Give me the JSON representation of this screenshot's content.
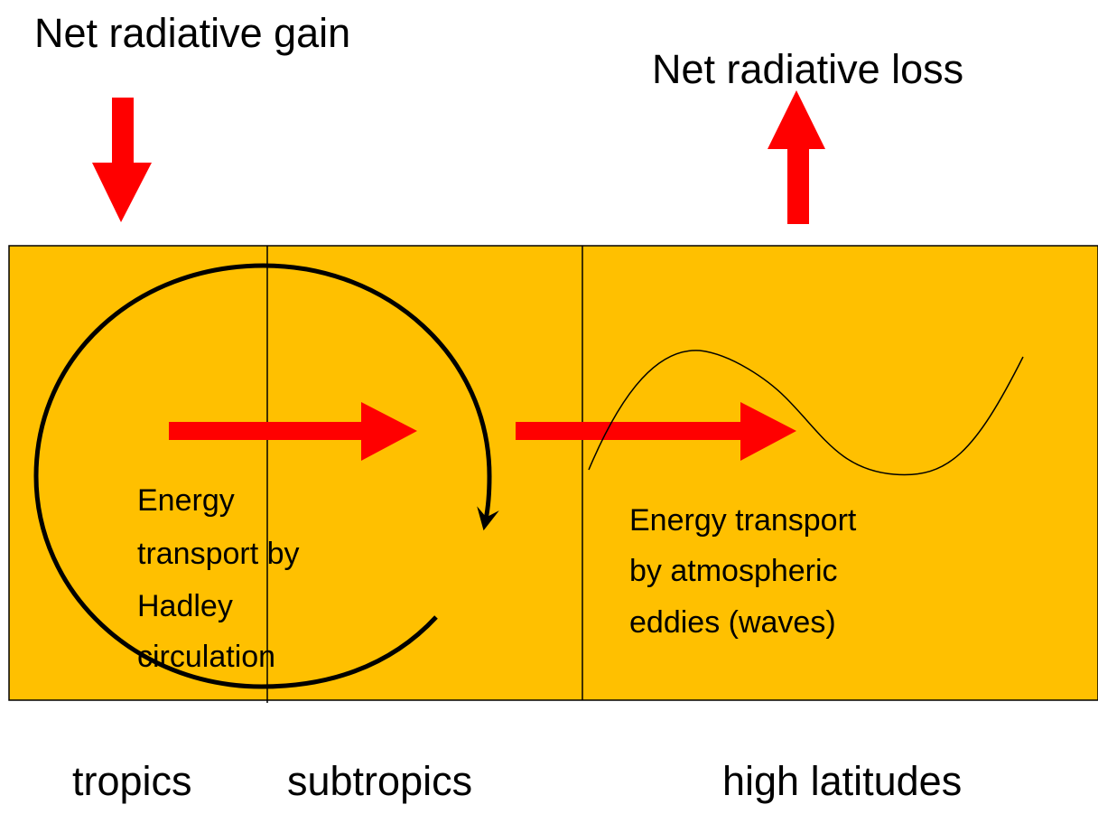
{
  "labels": {
    "gain": "Net radiative gain",
    "loss": "Net radiative loss"
  },
  "hadley_text": [
    "Energy",
    "transport by",
    "Hadley",
    "circulation"
  ],
  "eddy_text": [
    "Energy transport",
    "by atmospheric",
    "eddies (waves)"
  ],
  "zones": [
    "tropics",
    "subtropics",
    "high latitudes"
  ]
}
